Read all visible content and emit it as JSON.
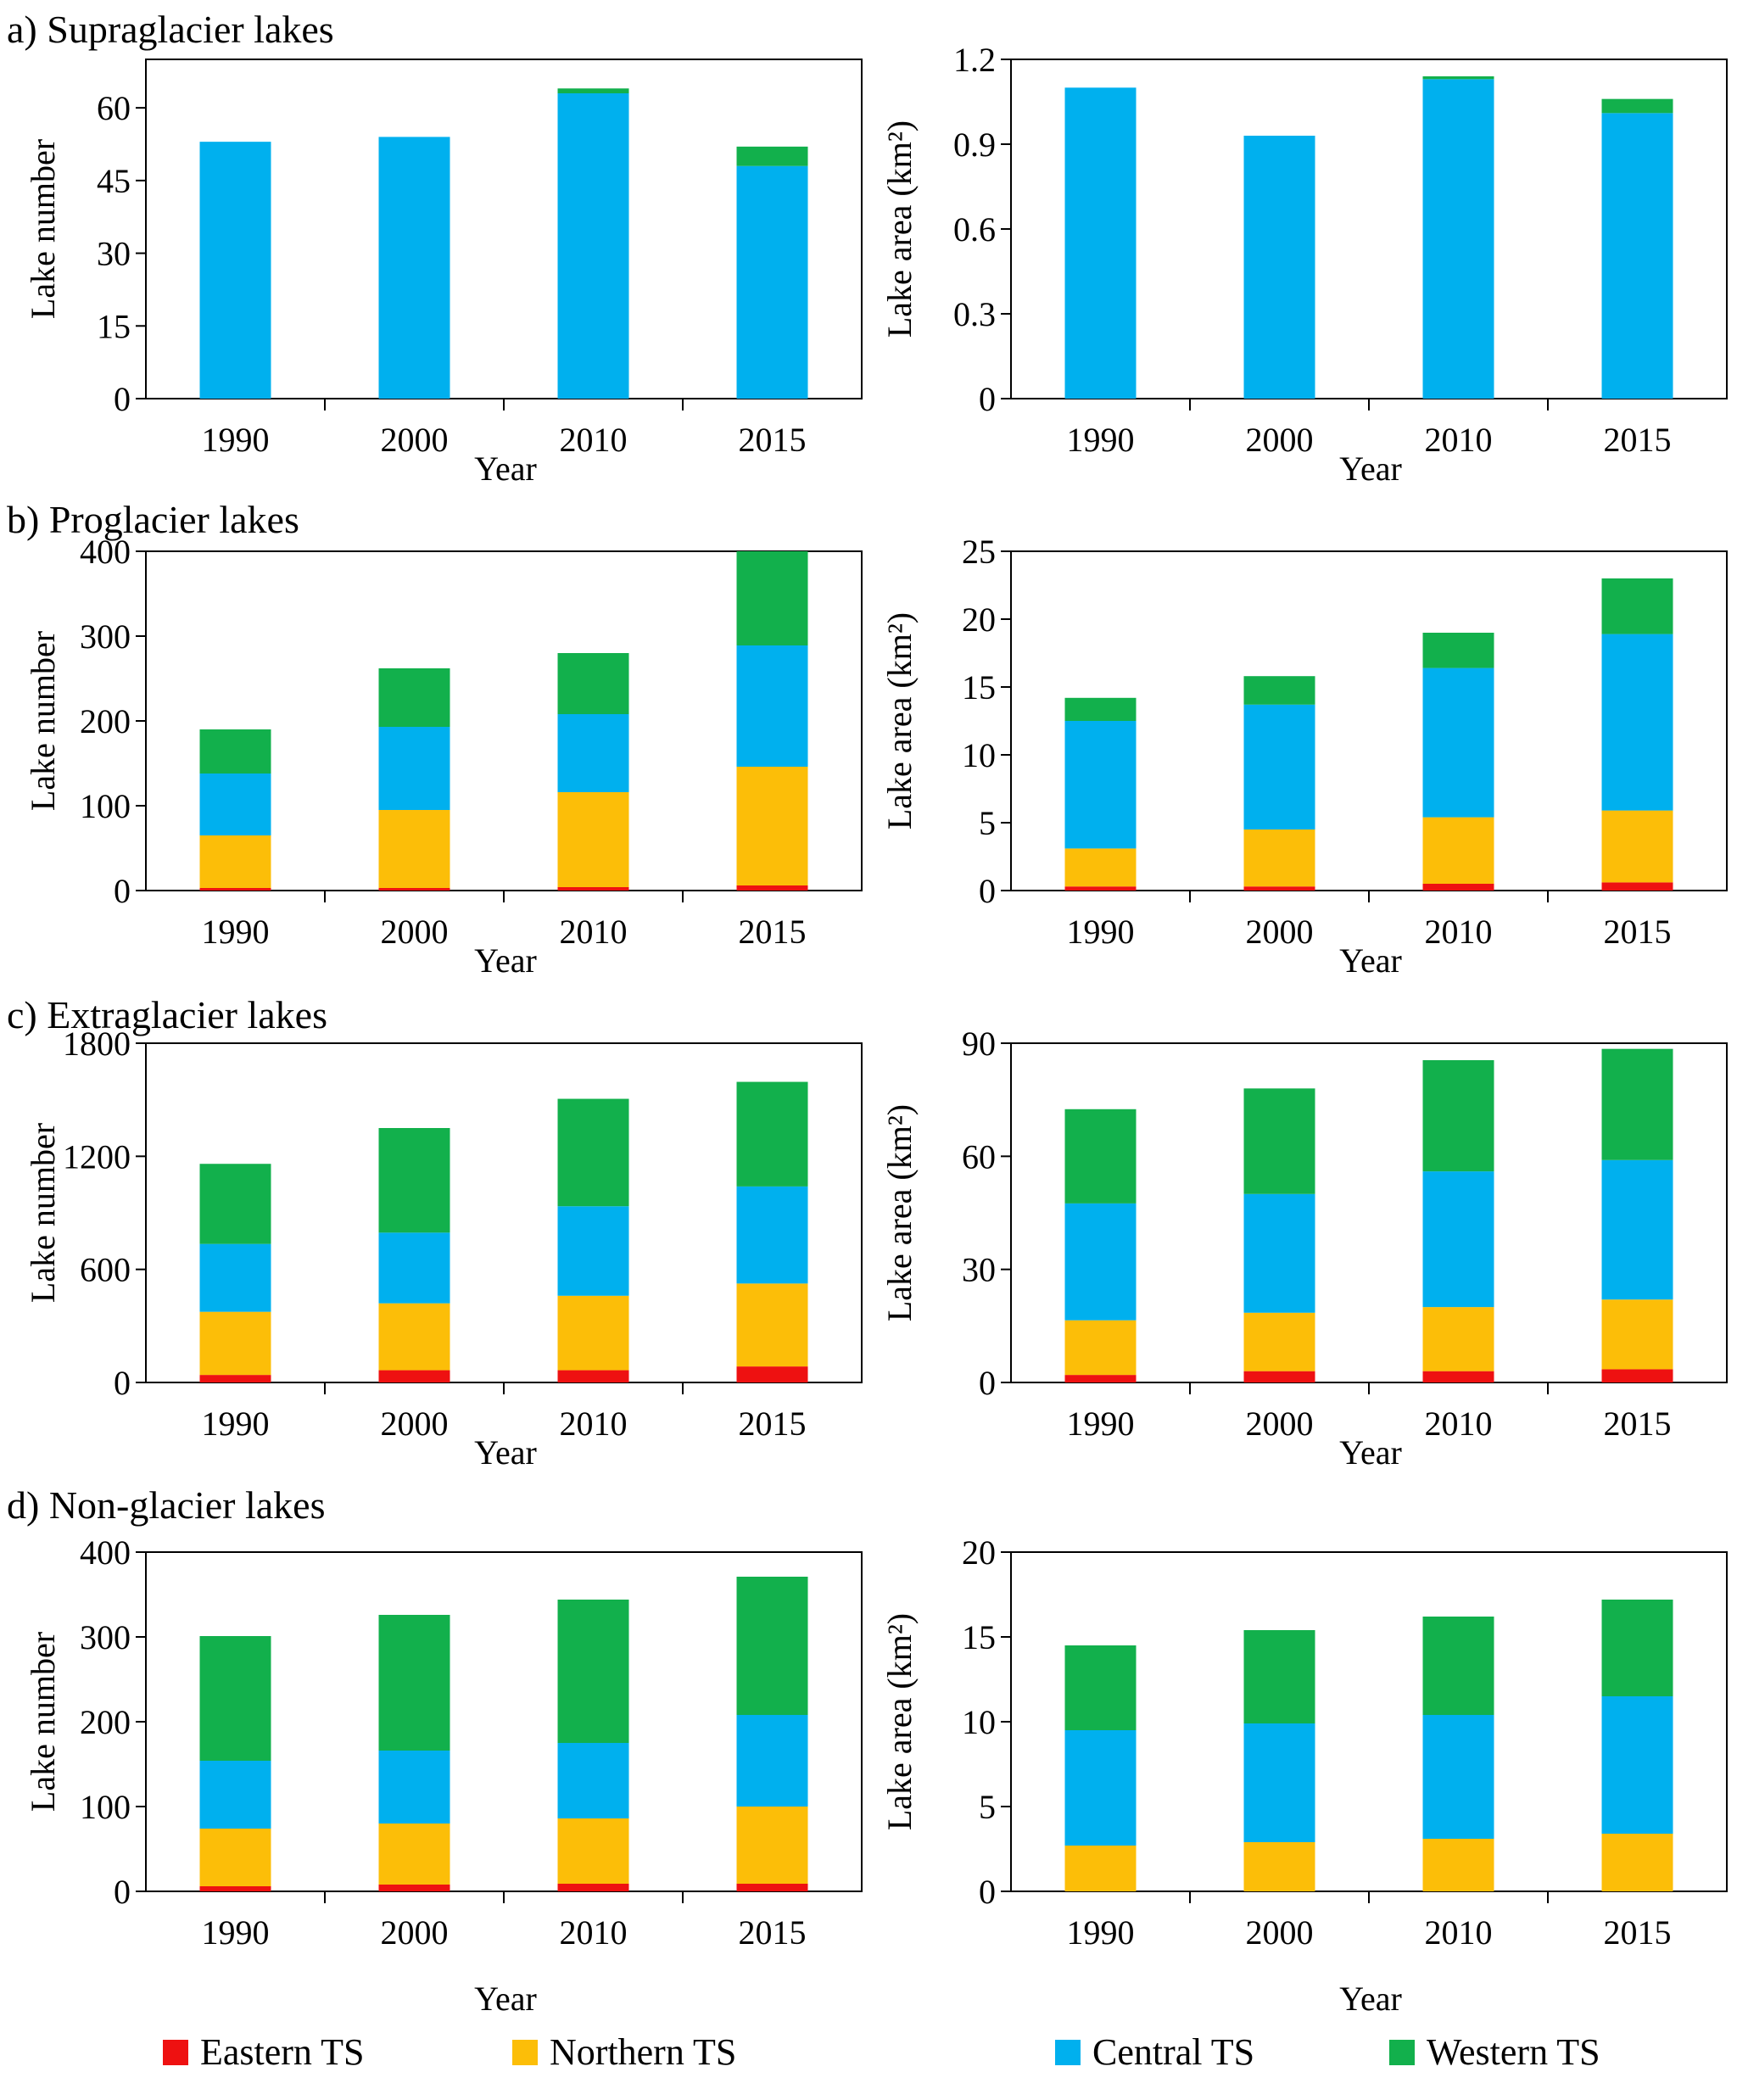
{
  "colors": {
    "eastern": "#ee1111",
    "northern": "#fcbe08",
    "central": "#00b0ee",
    "western": "#12b04c"
  },
  "legend": [
    {
      "key": "eastern",
      "label": "Eastern TS"
    },
    {
      "key": "northern",
      "label": "Northern TS"
    },
    {
      "key": "central",
      "label": "Central TS"
    },
    {
      "key": "western",
      "label": "Western TS"
    }
  ],
  "panels": [
    {
      "label": "a) Supraglacier lakes"
    },
    {
      "label": "b) Proglacier lakes"
    },
    {
      "label": "c) Extraglacier lakes"
    },
    {
      "label": "d) Non-glacier lakes"
    }
  ],
  "chart_data": [
    {
      "type": "bar",
      "stacked": true,
      "ylabel": "Lake number",
      "xlabel": "Year",
      "categories": [
        "1990",
        "2000",
        "2010",
        "2015"
      ],
      "yticks": [
        "0",
        "15",
        "30",
        "45",
        "60"
      ],
      "ylim": [
        0,
        70
      ],
      "series": [
        {
          "name": "Eastern TS",
          "key": "eastern",
          "values": [
            0,
            0,
            0,
            0
          ]
        },
        {
          "name": "Northern TS",
          "key": "northern",
          "values": [
            0,
            0,
            0,
            0
          ]
        },
        {
          "name": "Central TS",
          "key": "central",
          "values": [
            53,
            54,
            63,
            48
          ]
        },
        {
          "name": "Western TS",
          "key": "western",
          "values": [
            0,
            0,
            1,
            4
          ]
        }
      ]
    },
    {
      "type": "bar",
      "stacked": true,
      "ylabel": "Lake area (km²)",
      "xlabel": "Year",
      "categories": [
        "1990",
        "2000",
        "2010",
        "2015"
      ],
      "yticks": [
        "0",
        "0.3",
        "0.6",
        "0.9",
        "1.2"
      ],
      "ylim": [
        0,
        1.2
      ],
      "series": [
        {
          "name": "Eastern TS",
          "key": "eastern",
          "values": [
            0,
            0,
            0,
            0
          ]
        },
        {
          "name": "Northern TS",
          "key": "northern",
          "values": [
            0,
            0,
            0,
            0
          ]
        },
        {
          "name": "Central TS",
          "key": "central",
          "values": [
            1.1,
            0.93,
            1.13,
            1.01
          ]
        },
        {
          "name": "Western TS",
          "key": "western",
          "values": [
            0,
            0,
            0.01,
            0.05
          ]
        }
      ]
    },
    {
      "type": "bar",
      "stacked": true,
      "ylabel": "Lake number",
      "xlabel": "Year",
      "categories": [
        "1990",
        "2000",
        "2010",
        "2015"
      ],
      "yticks": [
        "0",
        "100",
        "200",
        "300",
        "400"
      ],
      "ylim": [
        0,
        400
      ],
      "series": [
        {
          "name": "Eastern TS",
          "key": "eastern",
          "values": [
            3,
            3,
            4,
            6
          ]
        },
        {
          "name": "Northern TS",
          "key": "northern",
          "values": [
            62,
            92,
            112,
            140
          ]
        },
        {
          "name": "Central TS",
          "key": "central",
          "values": [
            73,
            98,
            92,
            143
          ]
        },
        {
          "name": "Western TS",
          "key": "western",
          "values": [
            52,
            69,
            72,
            111
          ]
        }
      ]
    },
    {
      "type": "bar",
      "stacked": true,
      "ylabel": "Lake area (km²)",
      "xlabel": "Year",
      "categories": [
        "1990",
        "2000",
        "2010",
        "2015"
      ],
      "yticks": [
        "0",
        "5",
        "10",
        "15",
        "20",
        "25"
      ],
      "ylim": [
        0,
        25
      ],
      "series": [
        {
          "name": "Eastern TS",
          "key": "eastern",
          "values": [
            0.3,
            0.3,
            0.5,
            0.6
          ]
        },
        {
          "name": "Northern TS",
          "key": "northern",
          "values": [
            2.8,
            4.2,
            4.9,
            5.3
          ]
        },
        {
          "name": "Central TS",
          "key": "central",
          "values": [
            9.4,
            9.2,
            11.0,
            13.0
          ]
        },
        {
          "name": "Western TS",
          "key": "western",
          "values": [
            1.7,
            2.1,
            2.6,
            4.1
          ]
        }
      ]
    },
    {
      "type": "bar",
      "stacked": true,
      "ylabel": "Lake number",
      "xlabel": "Year",
      "categories": [
        "1990",
        "2000",
        "2010",
        "2015"
      ],
      "yticks": [
        "0",
        "600",
        "1200",
        "1800"
      ],
      "ylim": [
        0,
        1800
      ],
      "series": [
        {
          "name": "Eastern TS",
          "key": "eastern",
          "values": [
            40,
            65,
            65,
            85
          ]
        },
        {
          "name": "Northern TS",
          "key": "northern",
          "values": [
            335,
            355,
            395,
            440
          ]
        },
        {
          "name": "Central TS",
          "key": "central",
          "values": [
            360,
            375,
            475,
            515
          ]
        },
        {
          "name": "Western TS",
          "key": "western",
          "values": [
            425,
            555,
            570,
            555
          ]
        }
      ]
    },
    {
      "type": "bar",
      "stacked": true,
      "ylabel": "Lake area (km²)",
      "xlabel": "Year",
      "categories": [
        "1990",
        "2000",
        "2010",
        "2015"
      ],
      "yticks": [
        "0",
        "30",
        "60",
        "90"
      ],
      "ylim": [
        0,
        90
      ],
      "series": [
        {
          "name": "Eastern TS",
          "key": "eastern",
          "values": [
            2,
            3,
            3,
            3.5
          ]
        },
        {
          "name": "Northern TS",
          "key": "northern",
          "values": [
            14.5,
            15.5,
            17,
            18.5
          ]
        },
        {
          "name": "Central TS",
          "key": "central",
          "values": [
            31,
            31.5,
            36,
            37
          ]
        },
        {
          "name": "Western TS",
          "key": "western",
          "values": [
            25,
            28,
            29.5,
            29.5
          ]
        }
      ]
    },
    {
      "type": "bar",
      "stacked": true,
      "ylabel": "Lake number",
      "xlabel": "Year",
      "categories": [
        "1990",
        "2000",
        "2010",
        "2015"
      ],
      "yticks": [
        "0",
        "100",
        "200",
        "300",
        "400"
      ],
      "ylim": [
        0,
        400
      ],
      "series": [
        {
          "name": "Eastern TS",
          "key": "eastern",
          "values": [
            6,
            8,
            9,
            9
          ]
        },
        {
          "name": "Northern TS",
          "key": "northern",
          "values": [
            68,
            72,
            77,
            91
          ]
        },
        {
          "name": "Central TS",
          "key": "central",
          "values": [
            80,
            86,
            89,
            108
          ]
        },
        {
          "name": "Western TS",
          "key": "western",
          "values": [
            147,
            160,
            169,
            163
          ]
        }
      ]
    },
    {
      "type": "bar",
      "stacked": true,
      "ylabel": "Lake area (km²)",
      "xlabel": "Year",
      "categories": [
        "1990",
        "2000",
        "2010",
        "2015"
      ],
      "yticks": [
        "0",
        "5",
        "10",
        "15",
        "20"
      ],
      "ylim": [
        0,
        20
      ],
      "series": [
        {
          "name": "Eastern TS",
          "key": "eastern",
          "values": [
            0,
            0,
            0,
            0
          ]
        },
        {
          "name": "Northern TS",
          "key": "northern",
          "values": [
            2.7,
            2.9,
            3.1,
            3.4
          ]
        },
        {
          "name": "Central TS",
          "key": "central",
          "values": [
            6.8,
            7.0,
            7.3,
            8.1
          ]
        },
        {
          "name": "Western TS",
          "key": "western",
          "values": [
            5.0,
            5.5,
            5.8,
            5.7
          ]
        }
      ]
    }
  ]
}
